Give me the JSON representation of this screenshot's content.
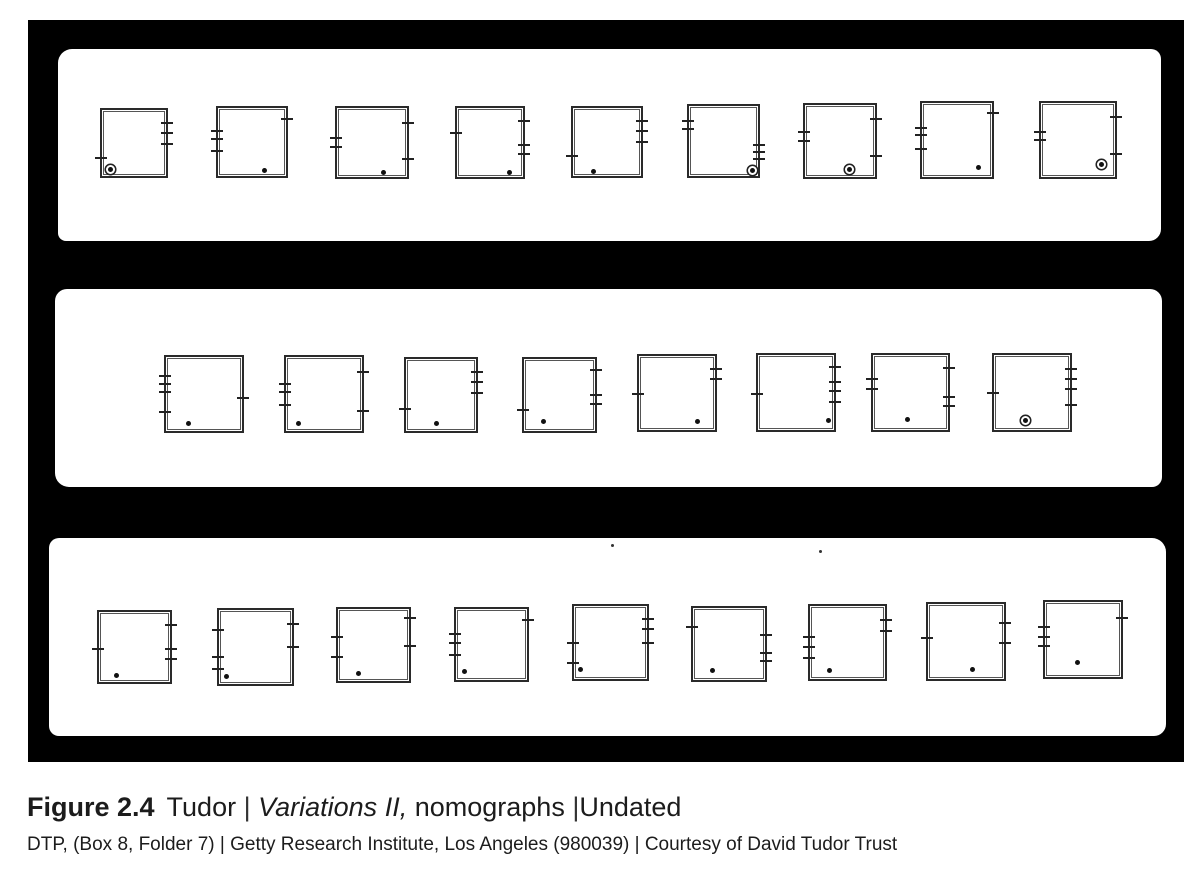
{
  "figure": {
    "label": "Figure 2.4",
    "author": "Tudor",
    "separator": "|",
    "work_title": "Variations II,",
    "work_type": "nomographs",
    "date": "Undated"
  },
  "credit": "DTP, (Box 8, Folder 7) | Getty Research Institute, Los Angeles (980039) | Courtesy of David Tudor Trust",
  "rows": [
    {
      "count": 9
    },
    {
      "count": 8
    },
    {
      "count": 9
    }
  ]
}
